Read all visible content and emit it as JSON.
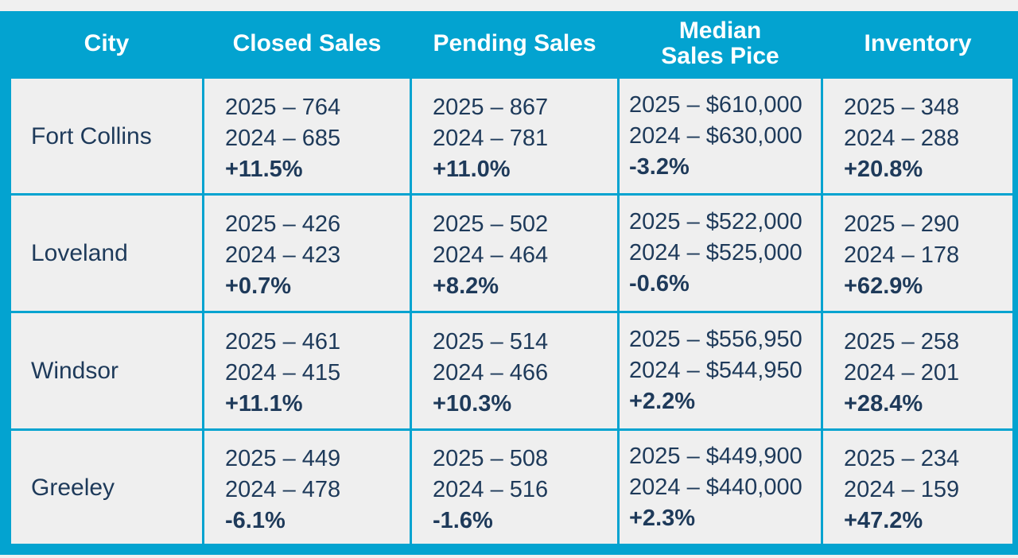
{
  "chart_data": {
    "type": "table",
    "columns": [
      "City",
      "Closed Sales",
      "Pending Sales",
      "Median Sales Pice",
      "Inventory"
    ],
    "header": {
      "city": "City",
      "closed": "Closed Sales",
      "pending": "Pending Sales",
      "median_line1": "Median",
      "median_line2": "Sales Pice",
      "inventory": "Inventory"
    },
    "rows": [
      {
        "city": "Fort Collins",
        "closed": [
          "2025 – 764",
          "2024 – 685",
          "+11.5%"
        ],
        "pending": [
          "2025 – 867",
          "2024 – 781",
          "+11.0%"
        ],
        "median": [
          "2025 – $610,000",
          "2024 – $630,000",
          "-3.2%"
        ],
        "inventory": [
          "2025 – 348",
          "2024 – 288",
          "+20.8%"
        ]
      },
      {
        "city": "Loveland",
        "closed": [
          "2025 – 426",
          "2024 – 423",
          "+0.7%"
        ],
        "pending": [
          "2025 – 502",
          "2024 – 464",
          "+8.2%"
        ],
        "median": [
          "2025 – $522,000",
          "2024 – $525,000",
          "-0.6%"
        ],
        "inventory": [
          "2025 – 290",
          "2024 – 178",
          "+62.9%"
        ]
      },
      {
        "city": "Windsor",
        "closed": [
          "2025 – 461",
          "2024 – 415",
          "+11.1%"
        ],
        "pending": [
          "2025 – 514",
          "2024 – 466",
          "+10.3%"
        ],
        "median": [
          "2025 – $556,950",
          "2024 – $544,950",
          "+2.2%"
        ],
        "inventory": [
          "2025 – 258",
          "2024 – 201",
          "+28.4%"
        ]
      },
      {
        "city": "Greeley",
        "closed": [
          "2025 – 449",
          "2024 – 478",
          "-6.1%"
        ],
        "pending": [
          "2025 – 508",
          "2024 – 516",
          "-1.6%"
        ],
        "median": [
          "2025 – $449,900",
          "2024 – $440,000",
          "+2.3%"
        ],
        "inventory": [
          "2025 – 234",
          "2024 – 159",
          "+47.2%"
        ]
      }
    ]
  },
  "colors": {
    "header_bg": "#03a3d0",
    "cell_bg": "#efefef",
    "text": "#1e3a5a",
    "header_text": "#ffffff"
  }
}
